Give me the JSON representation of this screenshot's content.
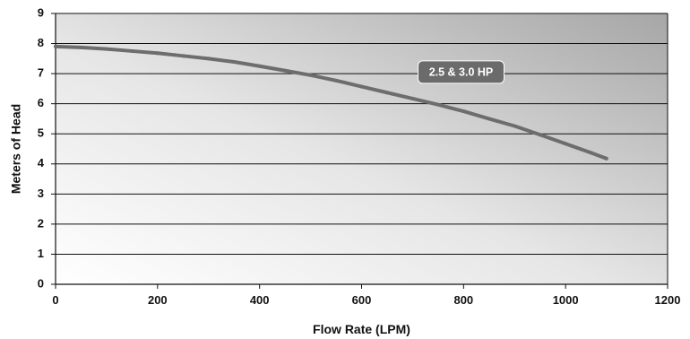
{
  "chart_data": {
    "type": "line",
    "xlabel": "Flow Rate (LPM)",
    "ylabel": "Meters of Head",
    "xlim": [
      0,
      1200
    ],
    "ylim": [
      0,
      9
    ],
    "x_ticks": [
      "0",
      "200",
      "400",
      "600",
      "800",
      "1000",
      "1200"
    ],
    "y_ticks": [
      "0",
      "1",
      "2",
      "3",
      "4",
      "5",
      "6",
      "7",
      "8",
      "9"
    ],
    "grid": "horizontal",
    "series": [
      {
        "name": "2.5 & 3.0 HP",
        "color": "#6d6d6d",
        "x": [
          0,
          50,
          100,
          150,
          200,
          250,
          300,
          350,
          400,
          450,
          500,
          550,
          600,
          650,
          700,
          750,
          800,
          850,
          900,
          950,
          1000,
          1050,
          1080
        ],
        "y": [
          7.9,
          7.87,
          7.82,
          7.75,
          7.68,
          7.59,
          7.5,
          7.39,
          7.25,
          7.1,
          6.95,
          6.77,
          6.57,
          6.37,
          6.17,
          5.97,
          5.75,
          5.5,
          5.26,
          4.97,
          4.67,
          4.37,
          4.18
        ]
      }
    ],
    "annotation": {
      "text": "2.5 & 3.0 HP",
      "x": 795,
      "y": 7.05
    }
  }
}
